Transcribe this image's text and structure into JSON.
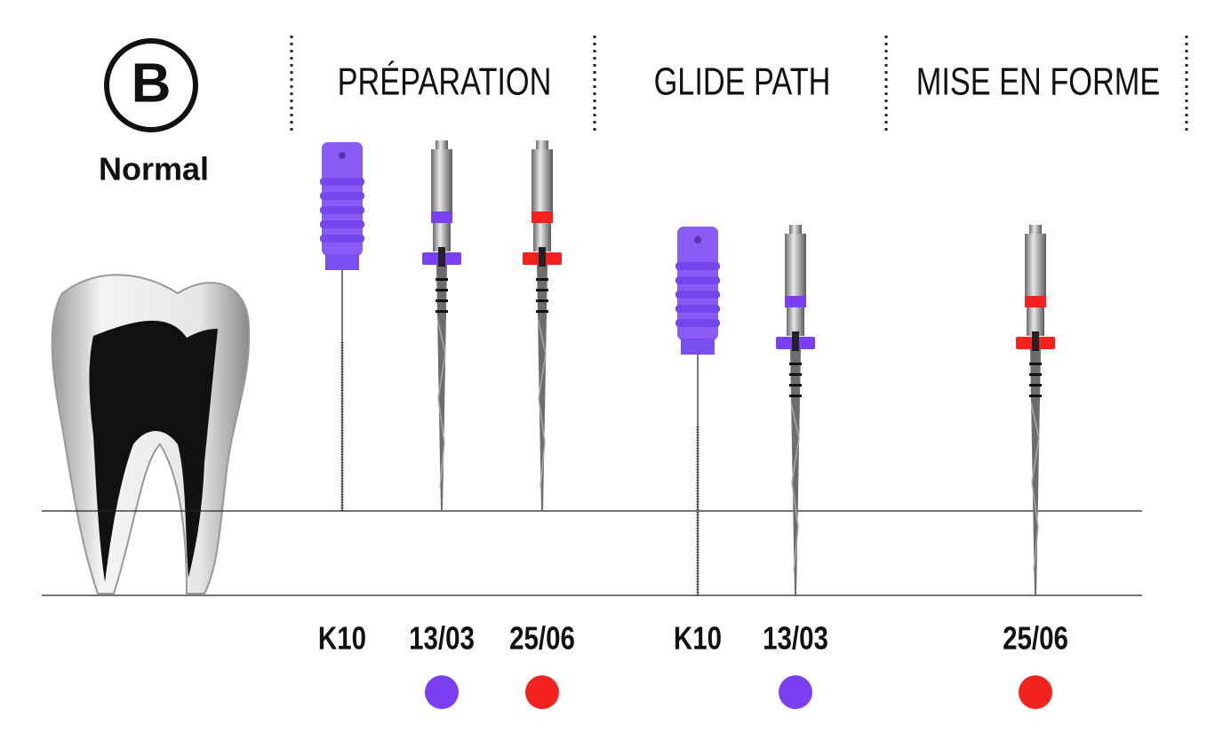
{
  "badge": "B",
  "label": "Normal",
  "sections": [
    {
      "title": "PRÉPARATION",
      "files": [
        {
          "name": "K10"
        },
        {
          "name": "13/03",
          "color": "#7b3ff2"
        },
        {
          "name": "25/06",
          "color": "#f2231f"
        }
      ]
    },
    {
      "title": "GLIDE PATH",
      "files": [
        {
          "name": "K10"
        },
        {
          "name": "13/03",
          "color": "#7b3ff2"
        }
      ]
    },
    {
      "title": "MISE EN FORME",
      "files": [
        {
          "name": "25/06",
          "color": "#f2231f"
        }
      ]
    }
  ]
}
